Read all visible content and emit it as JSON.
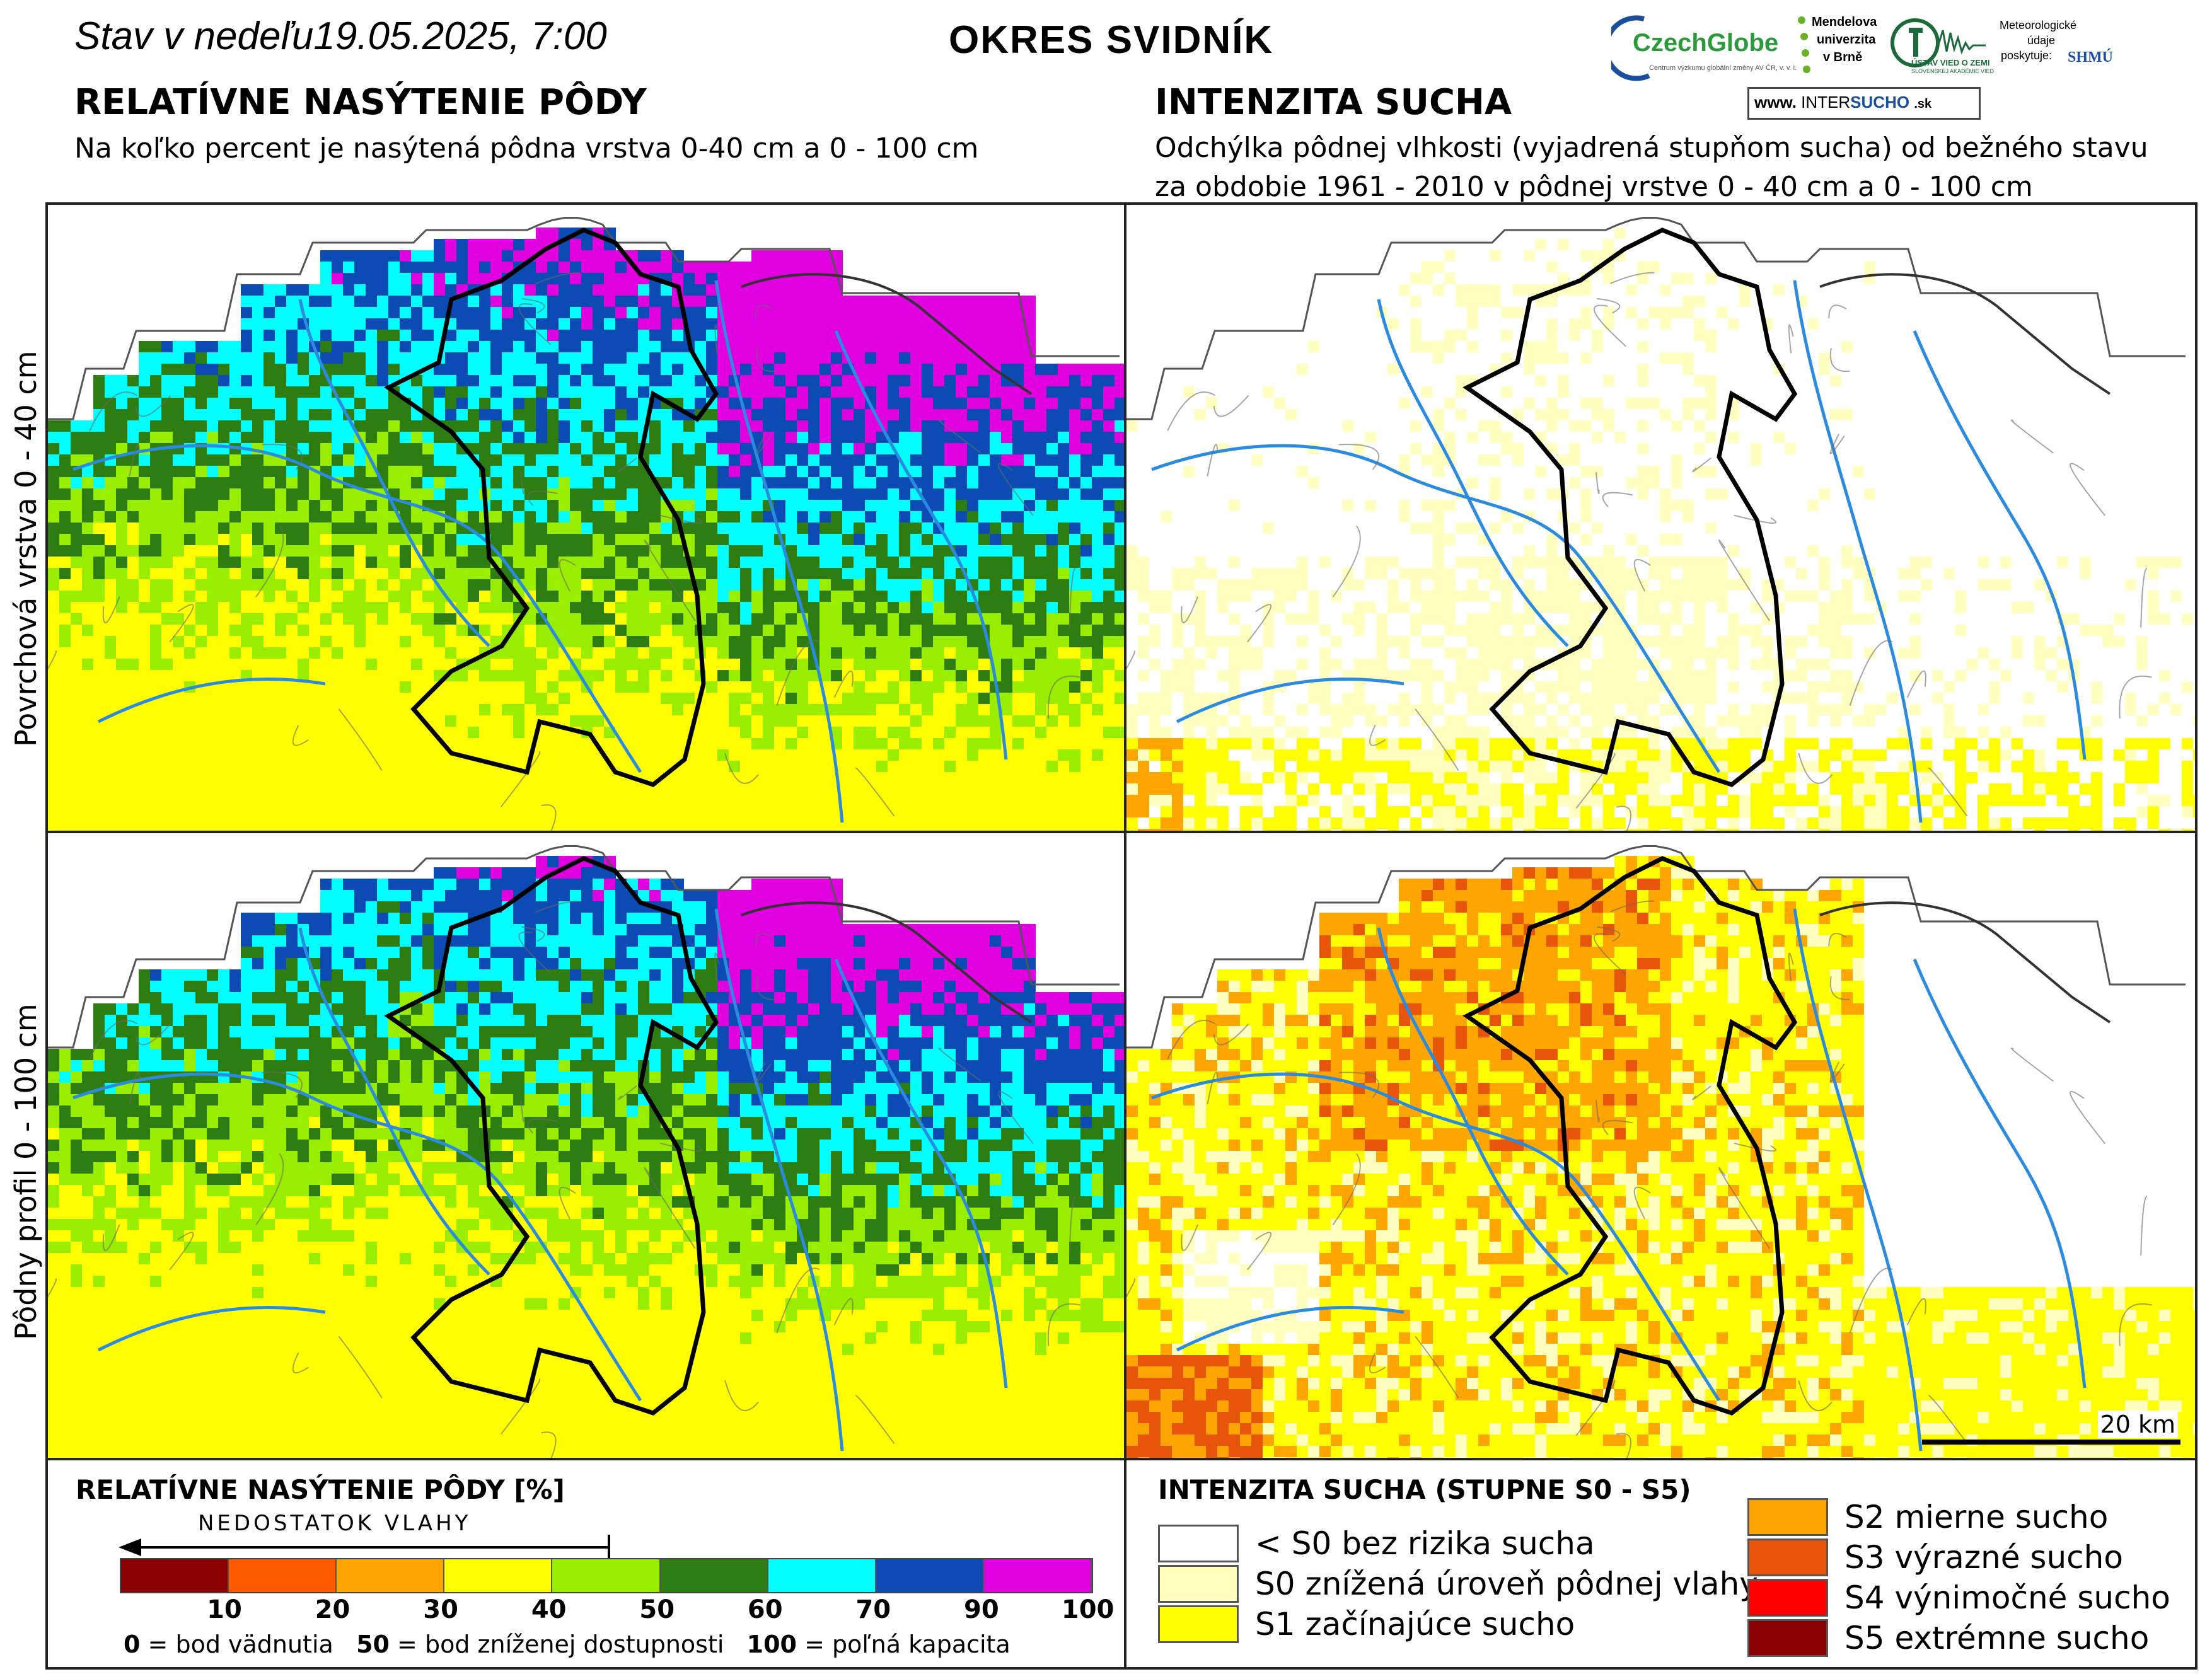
{
  "header": {
    "date_line": "Stav v nedeľu19.05.2025, 7:00",
    "district": "OKRES  SVIDNÍK",
    "left_title": "RELATÍVNE NASÝTENIE PÔDY",
    "left_subtitle": "Na koľko percent je nasýtená pôdna vrstva 0-40 cm a 0 - 100 cm",
    "right_title": "INTENZITA SUCHA",
    "right_subtitle_1": "Odchýlka pôdnej vlhkosti (vyjadrená stupňom sucha) od bežného stavu",
    "right_subtitle_2": "za obdobie 1961 - 2010 v pôdnej vrstve 0 - 40 cm a 0 - 100 cm"
  },
  "logos": {
    "czechglobe": "CzechGlobe",
    "czechglobe_sub": "Centrum výzkumu globální změny AV ČR, v. v. i.",
    "mendel": [
      "Mendelova",
      "univerzita",
      "v Brně"
    ],
    "ustav": "ÚSTAV VIED O ZEMI",
    "ustav_sub": "SLOVENSKEJ AKADÉMIE VIED",
    "meteo": [
      "Meteorologické",
      "údaje",
      "poskytuje:"
    ],
    "shmu": "SHMÚ",
    "intersucho_prefix": "www.",
    "intersucho_a": "INTER",
    "intersucho_b": "SUCHO",
    "intersucho_c": ".sk"
  },
  "row_labels": {
    "top": "Povrchová vrstva 0 - 40 cm",
    "bottom": "Pôdny profil 0 - 100 cm"
  },
  "scale_bar": "20 km",
  "saturation_legend": {
    "title": "RELATÍVNE NASÝTENIE PÔDY [%]",
    "arrow_label": "NEDOSTATOK VLAHY",
    "colors": [
      "#8b0000",
      "#ff5a00",
      "#ffa500",
      "#ffff00",
      "#99ee00",
      "#2e7d12",
      "#00ffff",
      "#0b4bb3",
      "#e000e0"
    ],
    "ticks": [
      "10",
      "20",
      "30",
      "40",
      "50",
      "60",
      "70",
      "90",
      "100"
    ],
    "note_0_key": "0",
    "note_0_text": " = bod vädnutia",
    "note_50_key": "50",
    "note_50_text": " = bod zníženej dostupnosti",
    "note_100_key": "100",
    "note_100_text": " = poľná kapacita"
  },
  "drought_legend": {
    "title": "INTENZITA SUCHA (STUPNE S0 - S5)",
    "items": [
      {
        "label": "< S0 bez rizika sucha",
        "color": "#ffffff"
      },
      {
        "label": "S0 znížená úroveň pôdnej vlahy",
        "color": "#ffffc0"
      },
      {
        "label": "S1 začínajúce sucho",
        "color": "#ffff00"
      },
      {
        "label": "S2 mierne sucho",
        "color": "#ffa500"
      },
      {
        "label": "S3 výrazné sucho",
        "color": "#e8540a"
      },
      {
        "label": "S4 výnimočné sucho",
        "color": "#ff0000"
      },
      {
        "label": "S5 extrémne sucho",
        "color": "#8b0000"
      }
    ]
  }
}
